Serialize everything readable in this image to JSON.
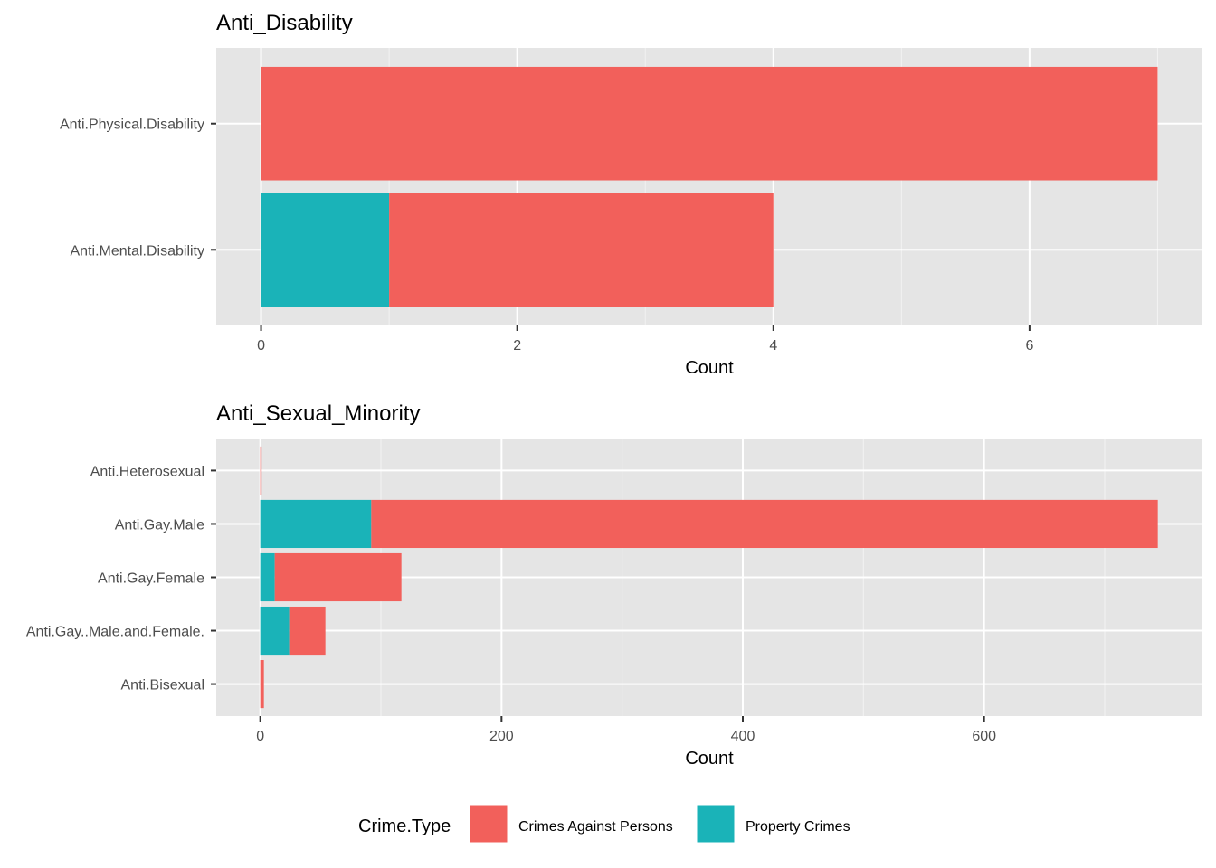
{
  "chart_data": [
    {
      "type": "bar",
      "orientation": "horizontal",
      "stacked": true,
      "title": "Anti_Disability",
      "xlabel": "Count",
      "ylabel": "",
      "categories": [
        "Anti.Physical.Disability",
        "Anti.Mental.Disability"
      ],
      "series": [
        {
          "name": "Property Crimes",
          "values": [
            0,
            1
          ]
        },
        {
          "name": "Crimes Against Persons",
          "values": [
            7,
            3
          ]
        }
      ],
      "xlim": [
        -0.35,
        7.35
      ],
      "xticks": [
        0,
        2,
        4,
        6
      ],
      "tick_labels": [
        "0",
        "2",
        "4",
        "6"
      ],
      "grid": true
    },
    {
      "type": "bar",
      "orientation": "horizontal",
      "stacked": true,
      "title": "Anti_Sexual_Minority",
      "xlabel": "Count",
      "ylabel": "",
      "categories": [
        "Anti.Heterosexual",
        "Anti.Gay.Male",
        "Anti.Gay.Female",
        "Anti.Gay..Male.and.Female.",
        "Anti.Bisexual"
      ],
      "series": [
        {
          "name": "Property Crimes",
          "values": [
            0,
            92,
            12,
            24,
            0
          ]
        },
        {
          "name": "Crimes Against Persons",
          "values": [
            1,
            652,
            105,
            30,
            3
          ]
        }
      ],
      "xlim": [
        -36.5,
        781
      ],
      "xticks": [
        0,
        200,
        400,
        600
      ],
      "tick_labels": [
        "0",
        "200",
        "400",
        "600"
      ],
      "grid": true
    }
  ],
  "legend": {
    "title": "Crime.Type",
    "position": "bottom",
    "items": [
      {
        "label": "Crimes Against Persons",
        "color": "#F8766D"
      },
      {
        "label": "Property Crimes",
        "color": "#00BFC4"
      }
    ]
  },
  "colors": {
    "Crimes Against Persons": "#F2605B",
    "Property Crimes": "#1AB3B8",
    "panel_bg": "#E5E5E5",
    "grid_major": "#FFFFFF",
    "grid_minor": "#F2F2F2"
  }
}
